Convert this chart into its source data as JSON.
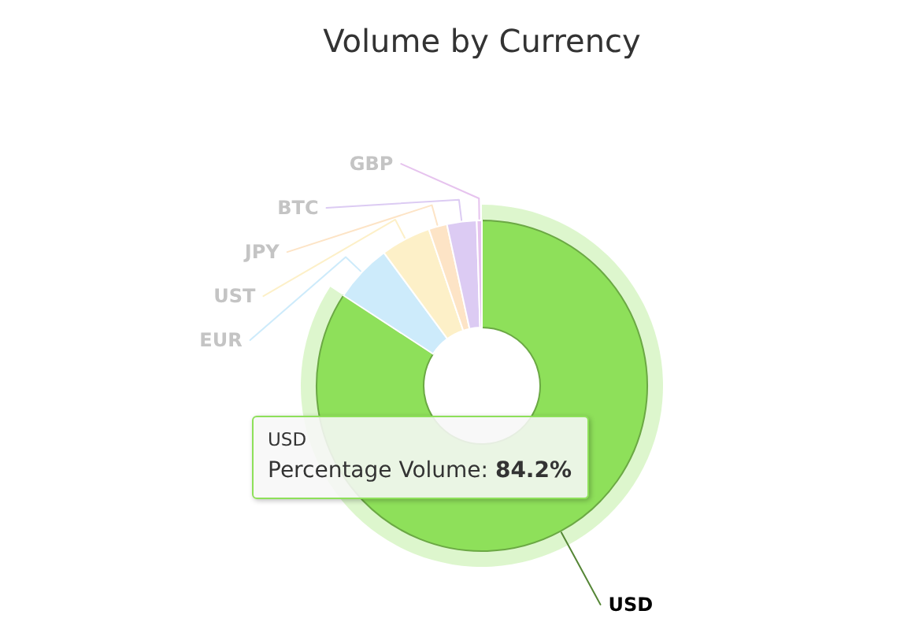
{
  "chart_data": {
    "type": "donut",
    "title": "Volume by Currency",
    "categories": [
      "USD",
      "EUR",
      "UST",
      "JPY",
      "BTC",
      "GBP"
    ],
    "values": [
      84.2,
      5.7,
      4.9,
      1.8,
      2.9,
      0.5
    ],
    "colors": [
      "#8ee05a",
      "#cdebfb",
      "#fdf0c8",
      "#fde4c6",
      "#dccbf3",
      "#e6c3ee"
    ],
    "annotations": [
      {
        "text": "USD\nPercentage Volume: 84.2%",
        "x": "USD"
      }
    ]
  }
}
